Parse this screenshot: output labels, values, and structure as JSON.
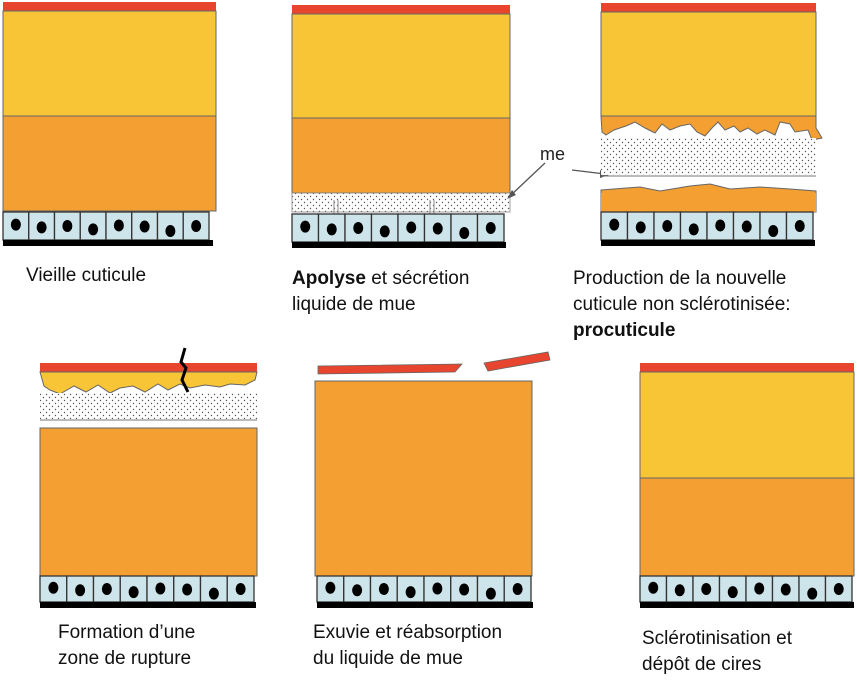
{
  "colors": {
    "epicuticle": "#e8452f",
    "exocuticle": "#f8c536",
    "endocuticle": "#f39f32",
    "cell": "#cde4ea",
    "membrane": "#000000",
    "outline": "#555555"
  },
  "labels": {
    "me": "me"
  },
  "panels": [
    {
      "caption": "Vieille cuticule"
    },
    {
      "caption_bold": "Apolyse",
      "caption_rest": " et sécrétion\nliquide de mue"
    },
    {
      "caption": "Production de la nouvelle\ncuticule non sclérotinisée:",
      "caption_bold_line": "procuticule"
    },
    {
      "caption": "Formation d’une\nzone de rupture"
    },
    {
      "caption": "Exuvie et réabsorption\ndu liquide de mue"
    },
    {
      "caption": "Sclérotinisation et\ndépôt de cires"
    }
  ]
}
